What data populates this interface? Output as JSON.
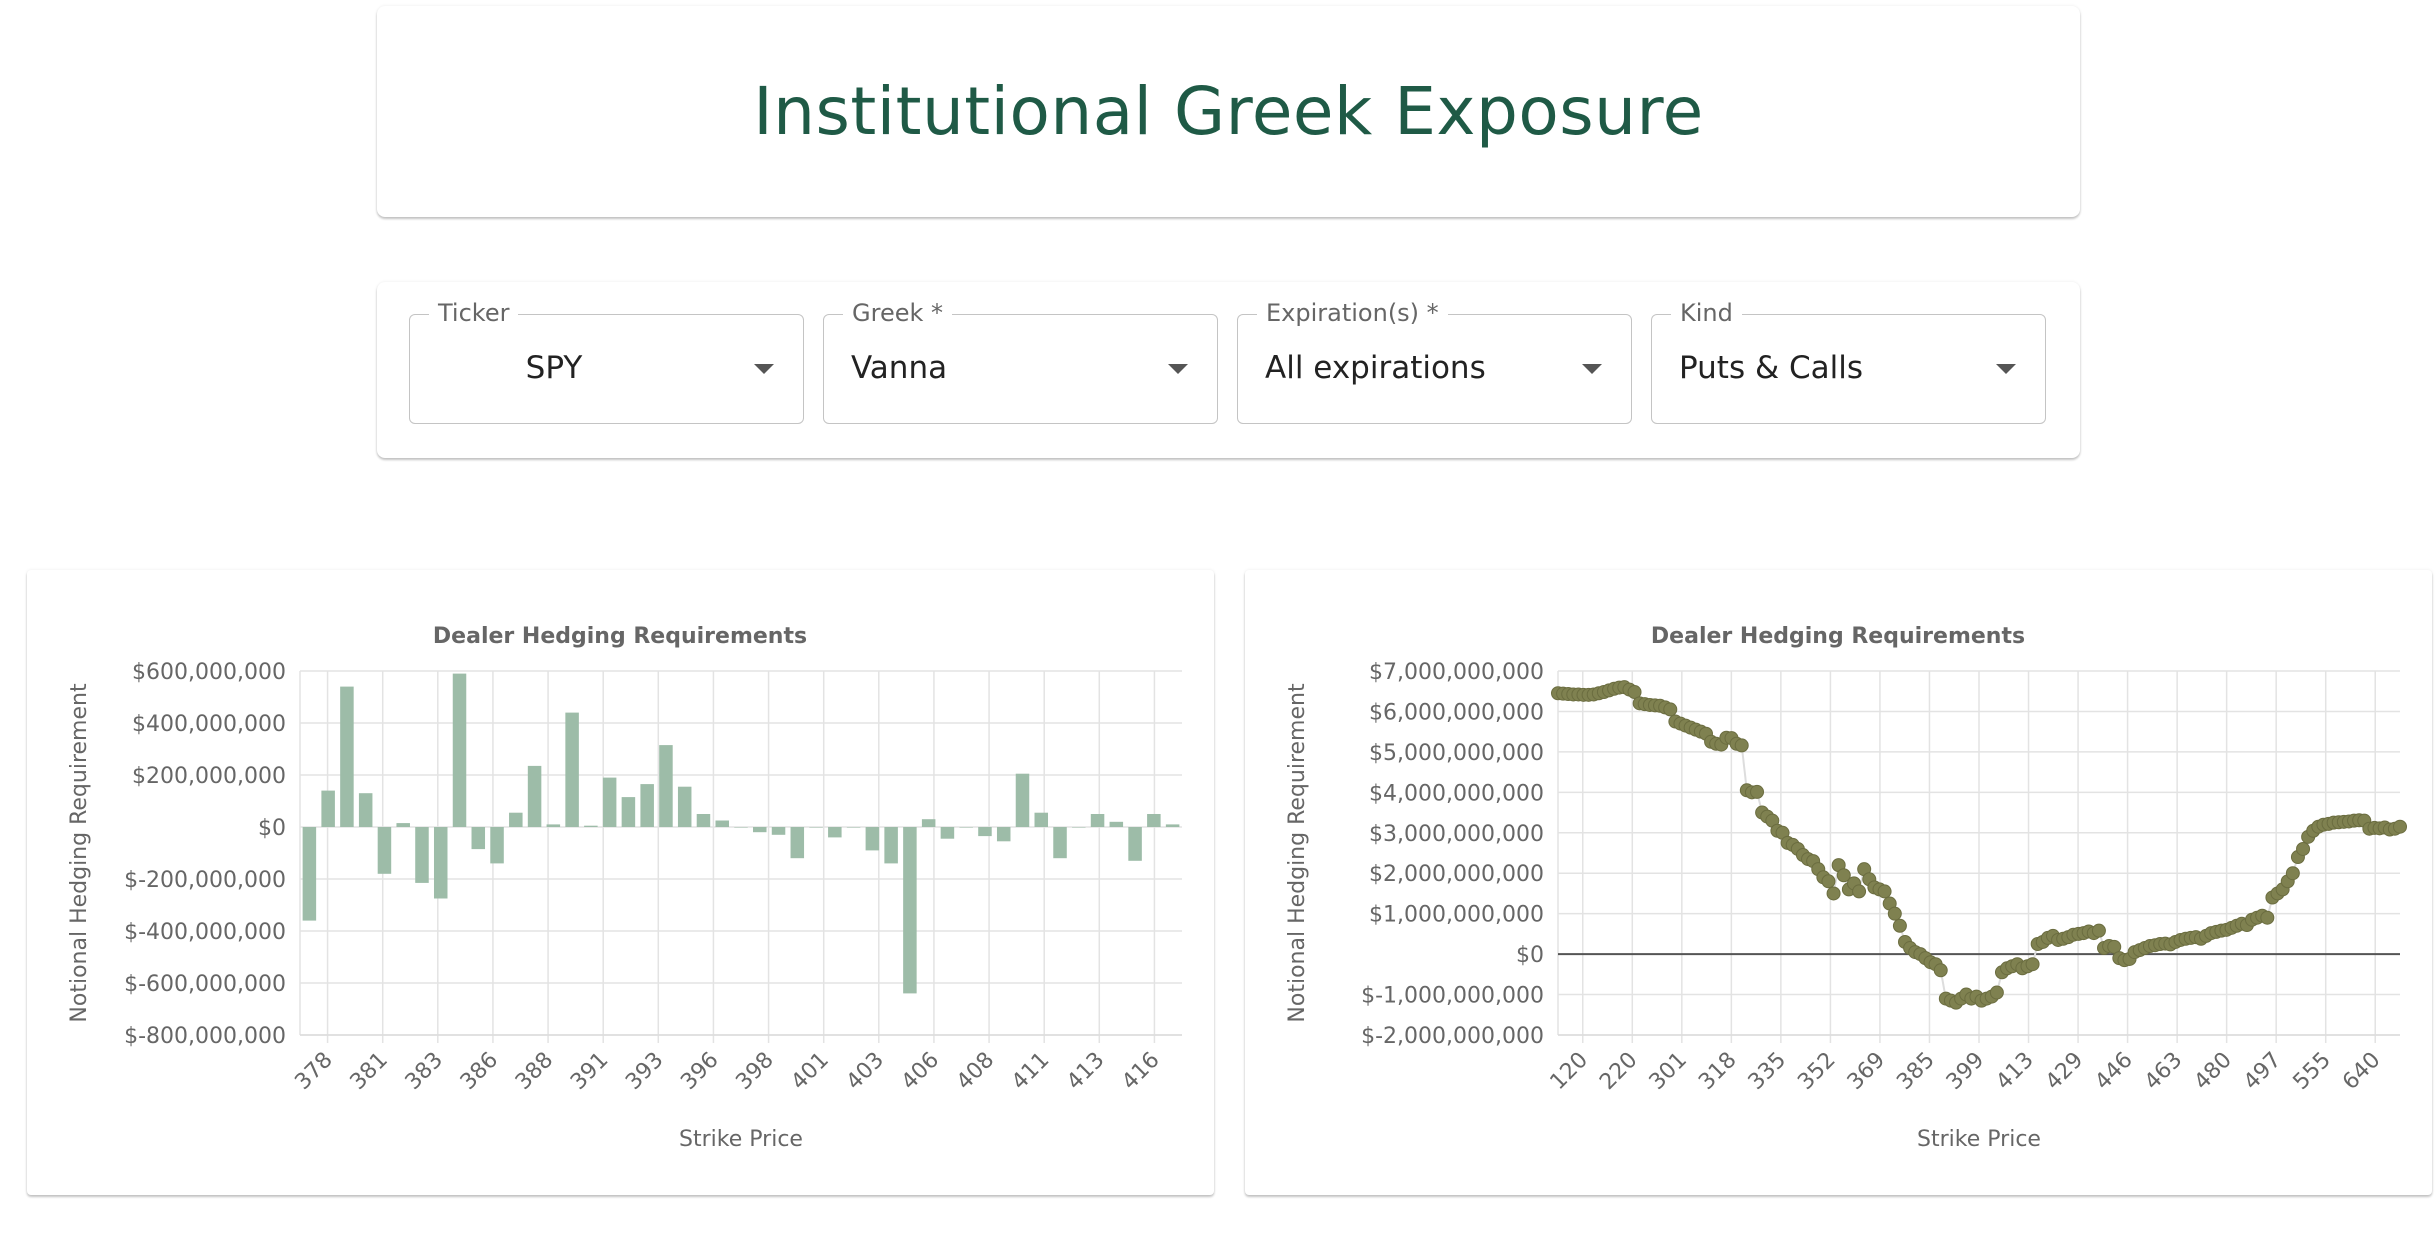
{
  "header": {
    "title": "Institutional Greek Exposure"
  },
  "controls": {
    "ticker": {
      "label": "Ticker",
      "value": "SPY"
    },
    "greek": {
      "label": "Greek *",
      "value": "Vanna"
    },
    "expirations": {
      "label": "Expiration(s) *",
      "value": "All expirations"
    },
    "kind": {
      "label": "Kind",
      "value": "Puts & Calls"
    }
  },
  "colors": {
    "title": "#1f5a46",
    "bar": "#9dbca8",
    "scatter": "#7f8150"
  },
  "chart_data": [
    {
      "type": "bar",
      "title": "Dealer Hedging Requirements",
      "xlabel": "Strike Price",
      "ylabel": "Notional Hedging Requirement",
      "ylim": [
        -800000000,
        600000000
      ],
      "yticks": [
        600000000,
        400000000,
        200000000,
        0,
        -200000000,
        -400000000,
        -600000000,
        -800000000
      ],
      "ytick_labels": [
        "$600,000,000",
        "$400,000,000",
        "$200,000,000",
        "$0",
        "$-200,000,000",
        "$-400,000,000",
        "$-600,000,000",
        "$-800,000,000"
      ],
      "xtick_labels": [
        "378",
        "381",
        "383",
        "386",
        "388",
        "391",
        "393",
        "396",
        "398",
        "401",
        "403",
        "406",
        "408",
        "411",
        "413",
        "416"
      ],
      "values": [
        -360000000,
        140000000,
        540000000,
        130000000,
        -180000000,
        15000000,
        -215000000,
        -275000000,
        590000000,
        -85000000,
        -140000000,
        55000000,
        235000000,
        10000000,
        440000000,
        5000000,
        190000000,
        115000000,
        165000000,
        315000000,
        155000000,
        50000000,
        25000000,
        0,
        -20000000,
        -30000000,
        -120000000,
        0,
        -40000000,
        0,
        -90000000,
        -140000000,
        -640000000,
        30000000,
        -45000000,
        0,
        -35000000,
        -55000000,
        205000000,
        55000000,
        -120000000,
        0,
        50000000,
        20000000,
        -130000000,
        50000000,
        10000000
      ],
      "grid": true,
      "legend": "none"
    },
    {
      "type": "scatter",
      "title": "Dealer Hedging Requirements",
      "xlabel": "Strike Price",
      "ylabel": "Notional Hedging Requirement",
      "ylim": [
        -2000000000,
        7000000000
      ],
      "yticks": [
        7000000000,
        6000000000,
        5000000000,
        4000000000,
        3000000000,
        2000000000,
        1000000000,
        0,
        -1000000000,
        -2000000000
      ],
      "ytick_labels": [
        "$7,000,000,000",
        "$6,000,000,000",
        "$5,000,000,000",
        "$4,000,000,000",
        "$3,000,000,000",
        "$2,000,000,000",
        "$1,000,000,000",
        "$0",
        "$-1,000,000,000",
        "$-2,000,000,000"
      ],
      "xtick_labels": [
        "120",
        "220",
        "301",
        "318",
        "335",
        "352",
        "369",
        "385",
        "399",
        "413",
        "429",
        "446",
        "463",
        "480",
        "497",
        "555",
        "640"
      ],
      "values": [
        6450000000,
        6440000000,
        6430000000,
        6420000000,
        6420000000,
        6410000000,
        6410000000,
        6420000000,
        6450000000,
        6480000000,
        6520000000,
        6560000000,
        6590000000,
        6600000000,
        6540000000,
        6480000000,
        6200000000,
        6180000000,
        6160000000,
        6150000000,
        6140000000,
        6100000000,
        6050000000,
        5750000000,
        5700000000,
        5650000000,
        5600000000,
        5550000000,
        5500000000,
        5450000000,
        5250000000,
        5200000000,
        5180000000,
        5350000000,
        5340000000,
        5200000000,
        5160000000,
        4050000000,
        4000000000,
        4010000000,
        3500000000,
        3400000000,
        3300000000,
        3050000000,
        3000000000,
        2750000000,
        2700000000,
        2600000000,
        2450000000,
        2350000000,
        2300000000,
        2100000000,
        1900000000,
        1800000000,
        1500000000,
        2200000000,
        1950000000,
        1600000000,
        1750000000,
        1550000000,
        2100000000,
        1850000000,
        1650000000,
        1600000000,
        1550000000,
        1250000000,
        1000000000,
        700000000,
        300000000,
        150000000,
        50000000,
        0,
        -100000000,
        -200000000,
        -250000000,
        -400000000,
        -1100000000,
        -1150000000,
        -1200000000,
        -1100000000,
        -1000000000,
        -1100000000,
        -1050000000,
        -1150000000,
        -1100000000,
        -1050000000,
        -950000000,
        -450000000,
        -350000000,
        -300000000,
        -250000000,
        -350000000,
        -300000000,
        -250000000,
        250000000,
        300000000,
        400000000,
        450000000,
        350000000,
        380000000,
        420000000,
        480000000,
        500000000,
        520000000,
        560000000,
        520000000,
        580000000,
        150000000,
        200000000,
        180000000,
        -100000000,
        -150000000,
        -120000000,
        50000000,
        100000000,
        150000000,
        200000000,
        220000000,
        250000000,
        260000000,
        240000000,
        300000000,
        350000000,
        380000000,
        400000000,
        420000000,
        380000000,
        450000000,
        520000000,
        550000000,
        580000000,
        600000000,
        650000000,
        700000000,
        750000000,
        720000000,
        850000000,
        900000000,
        950000000,
        900000000,
        1400000000,
        1500000000,
        1600000000,
        1800000000,
        2000000000,
        2400000000,
        2600000000,
        2900000000,
        3050000000,
        3150000000,
        3200000000,
        3220000000,
        3250000000,
        3260000000,
        3270000000,
        3280000000,
        3300000000,
        3310000000,
        3300000000,
        3100000000,
        3120000000,
        3110000000,
        3130000000,
        3080000000,
        3100000000,
        3150000000
      ],
      "zero_line": true,
      "grid": true,
      "legend": "none"
    }
  ]
}
